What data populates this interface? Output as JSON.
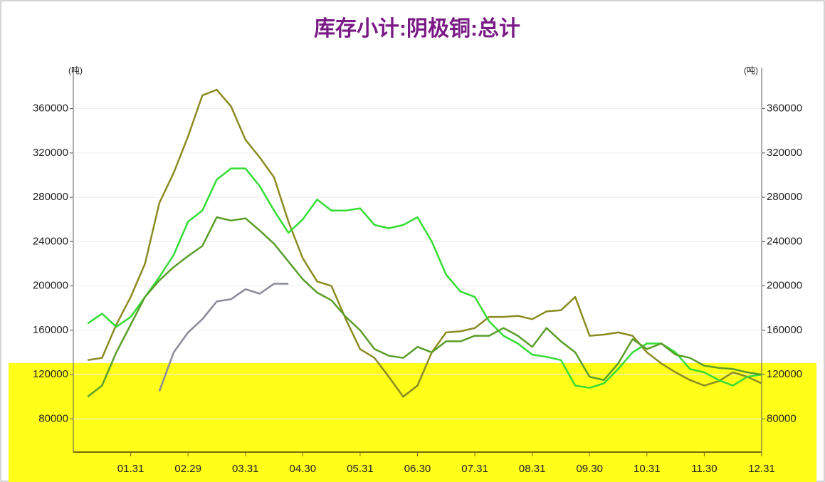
{
  "chart_data": {
    "type": "line",
    "title": "库存小计:阴极铜:总计",
    "y_label": "(吨)",
    "y2_label": "(吨)",
    "categories": [
      null,
      null,
      null,
      "01.31",
      null,
      null,
      null,
      "02.29",
      null,
      null,
      null,
      "03.31",
      null,
      null,
      null,
      "04.30",
      null,
      null,
      null,
      "05.31",
      null,
      null,
      null,
      "06.30",
      null,
      null,
      null,
      "07.31",
      null,
      null,
      null,
      "08.31",
      null,
      null,
      null,
      "09.30",
      null,
      null,
      null,
      "10.31",
      null,
      null,
      null,
      "11.30",
      null,
      null,
      null,
      "12.31"
    ],
    "series": [
      {
        "color": "#8b8b22",
        "values": [
          133000,
          135000,
          165000,
          190000,
          220000,
          275000,
          302000,
          335000,
          372000,
          377000,
          362000,
          332000,
          316000,
          298000,
          258000,
          225000,
          204000,
          200000,
          170000,
          143000,
          135000,
          118000,
          100000,
          110000,
          140000,
          158000,
          159000,
          162000,
          172000,
          172000,
          173000,
          170000,
          177000,
          178000,
          190000,
          155000,
          156000,
          158000,
          155000,
          140000,
          130000,
          122000,
          115000,
          110000,
          114000,
          122000,
          118000,
          112000
        ]
      },
      {
        "color": "#33dd33",
        "values": [
          166000,
          175000,
          163000,
          172000,
          190000,
          208000,
          228000,
          258000,
          268000,
          296000,
          306000,
          306000,
          290000,
          268000,
          248000,
          260000,
          278000,
          268000,
          268000,
          270000,
          255000,
          252000,
          255000,
          262000,
          240000,
          210000,
          195000,
          190000,
          168000,
          155000,
          148000,
          138000,
          136000,
          133000,
          110000,
          108000,
          112000,
          125000,
          140000,
          148000,
          148000,
          140000,
          125000,
          122000,
          115000,
          110000,
          118000,
          120000
        ]
      },
      {
        "color": "#5a9e2a",
        "values": [
          100000,
          110000,
          140000,
          165000,
          190000,
          205000,
          217000,
          227000,
          236000,
          262000,
          259000,
          261000,
          250000,
          238000,
          222000,
          206000,
          194000,
          187000,
          172000,
          160000,
          143000,
          137000,
          135000,
          145000,
          140000,
          150000,
          150000,
          155000,
          155000,
          162000,
          155000,
          145000,
          162000,
          150000,
          140000,
          118000,
          115000,
          130000,
          152000,
          143000,
          148000,
          138000,
          135000,
          128000,
          126000,
          125000,
          122000,
          120000
        ]
      },
      {
        "color": "#8a8a99",
        "values": [
          null,
          null,
          null,
          null,
          null,
          105000,
          140000,
          158000,
          170000,
          186000,
          188000,
          197000,
          193000,
          202000,
          202000,
          null,
          null,
          null,
          null,
          null,
          null,
          null,
          null,
          null,
          null,
          null,
          null,
          null,
          null,
          null,
          null,
          null,
          null,
          null,
          null,
          null,
          null,
          null,
          null,
          null,
          null,
          null,
          null,
          null,
          null,
          null,
          null,
          null
        ]
      }
    ],
    "ylim": [
      50000,
      397000
    ],
    "yticks": [
      80000,
      120000,
      160000,
      200000,
      240000,
      280000,
      320000,
      360000
    ],
    "y2lim": [
      50000,
      397000
    ],
    "y2ticks": [
      80000,
      120000,
      160000,
      200000,
      240000,
      280000,
      320000,
      360000
    ],
    "grid": true
  }
}
